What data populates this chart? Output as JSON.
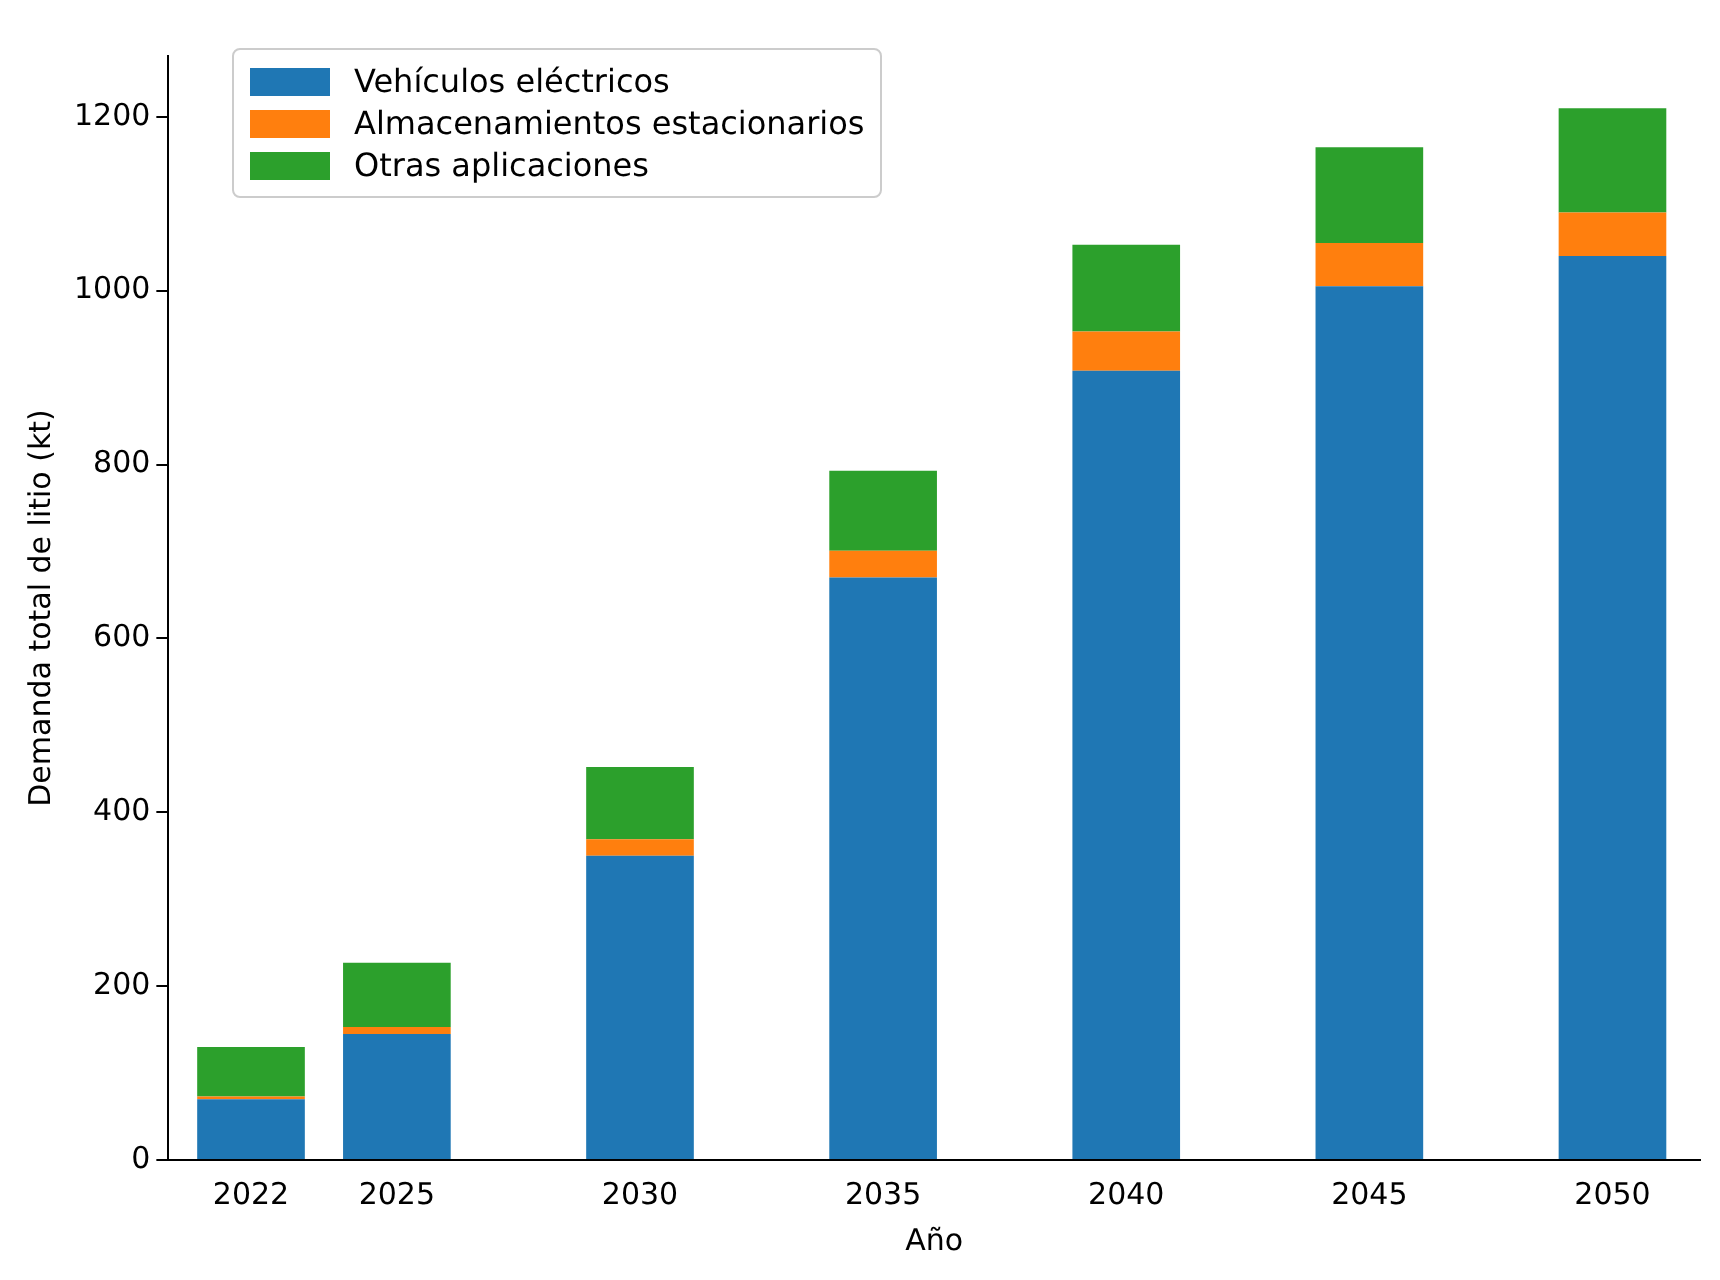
{
  "chart_data": {
    "type": "bar",
    "stacked": true,
    "xlabel": "Año",
    "ylabel": "Demanda total de litio (kt)",
    "x": [
      2022,
      2025,
      2030,
      2035,
      2040,
      2045,
      2050
    ],
    "series": [
      {
        "name": "Vehículos eléctricos",
        "color": "#1f77b4",
        "values": [
          70,
          145,
          350,
          670,
          908,
          1005,
          1040
        ]
      },
      {
        "name": "Almacenamientos estacionarios",
        "color": "#ff7f0e",
        "values": [
          3,
          8,
          19,
          31,
          45,
          50,
          50
        ]
      },
      {
        "name": "Otras aplicaciones",
        "color": "#2ca02c",
        "values": [
          57,
          74,
          83,
          92,
          100,
          110,
          120
        ]
      }
    ],
    "xlim": [
      2020.3,
      2051.8
    ],
    "xticks": [
      2022,
      2025,
      2030,
      2035,
      2040,
      2045,
      2050
    ],
    "ylim": [
      0,
      1270
    ],
    "yticks": [
      0,
      200,
      400,
      600,
      800,
      1000,
      1200
    ],
    "grid": false,
    "legend": "top left"
  }
}
